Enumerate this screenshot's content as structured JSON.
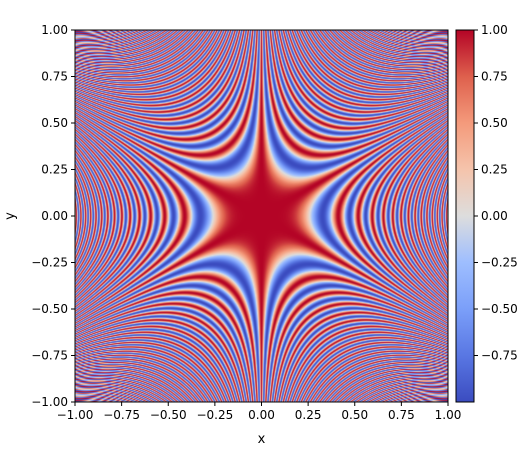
{
  "chart_data": {
    "type": "heatmap",
    "function": "cos(x^2 - y^2) pattern with 3-fold angular symmetry (high-frequency interference)",
    "xlabel": "x",
    "ylabel": "y",
    "xlim": [
      -1.0,
      1.0
    ],
    "ylim": [
      -1.0,
      1.0
    ],
    "x_ticks": [
      "−1.00",
      "−0.75",
      "−0.50",
      "−0.25",
      "0.00",
      "0.25",
      "0.50",
      "0.75",
      "1.00"
    ],
    "y_ticks": [
      "−1.00",
      "−0.75",
      "−0.50",
      "−0.25",
      "0.00",
      "0.25",
      "0.50",
      "0.75",
      "1.00"
    ],
    "colorbar": {
      "colormap": "coolwarm",
      "vmin": -1.0,
      "vmax": 1.0,
      "ticks": [
        "1.00",
        "0.75",
        "0.50",
        "0.25",
        "0.00",
        "−0.25",
        "−0.50",
        "−0.75"
      ],
      "tick_values": [
        1.0,
        0.75,
        0.5,
        0.25,
        0.0,
        -0.25,
        -0.5,
        -0.75
      ]
    },
    "colors": {
      "low": "#3b4cc0",
      "mid": "#dddddd",
      "high": "#b40426"
    },
    "grid": false
  }
}
